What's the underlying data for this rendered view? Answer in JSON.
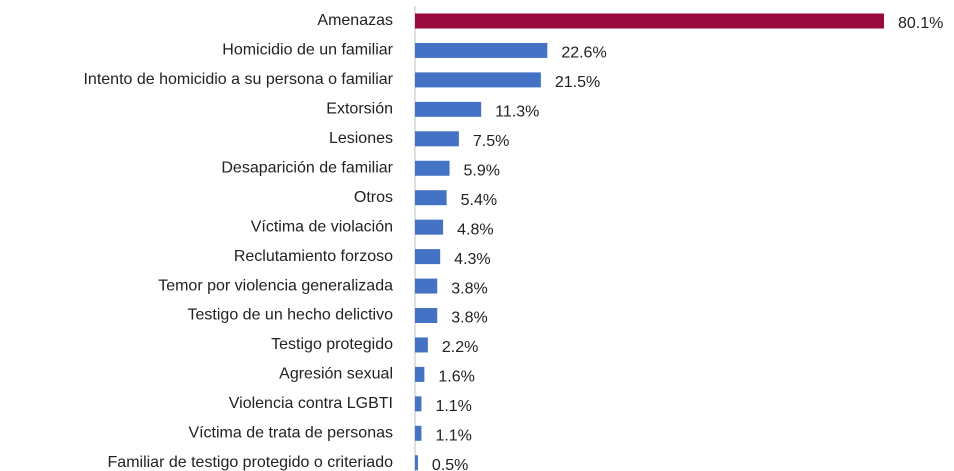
{
  "chart_data": {
    "type": "bar",
    "orientation": "horizontal",
    "categories": [
      "Amenazas",
      "Homicidio de un familiar",
      "Intento de homicidio a su persona o familiar",
      "Extorsión",
      "Lesiones",
      "Desaparición de familiar",
      "Otros",
      "Víctima de violación",
      "Reclutamiento forzoso",
      "Temor por violencia generalizada",
      "Testigo de un hecho delictivo",
      "Testigo protegido",
      "Agresión sexual",
      "Violencia contra LGBTI",
      "Víctima de trata de personas",
      "Familiar de testigo protegido o criteriado"
    ],
    "values": [
      80.1,
      22.6,
      21.5,
      11.3,
      7.5,
      5.9,
      5.4,
      4.8,
      4.3,
      3.8,
      3.8,
      2.2,
      1.6,
      1.1,
      1.1,
      0.5
    ],
    "value_labels": [
      "80.1%",
      "22.6%",
      "21.5%",
      "11.3%",
      "7.5%",
      "5.9%",
      "5.4%",
      "4.8%",
      "4.3%",
      "3.8%",
      "3.8%",
      "2.2%",
      "1.6%",
      "1.1%",
      "1.1%",
      "0.5%"
    ],
    "colors": [
      "#9b0a3c",
      "#4472c4",
      "#4472c4",
      "#4472c4",
      "#4472c4",
      "#4472c4",
      "#4472c4",
      "#4472c4",
      "#4472c4",
      "#4472c4",
      "#4472c4",
      "#4472c4",
      "#4472c4",
      "#4472c4",
      "#4472c4",
      "#4472c4"
    ]
  }
}
